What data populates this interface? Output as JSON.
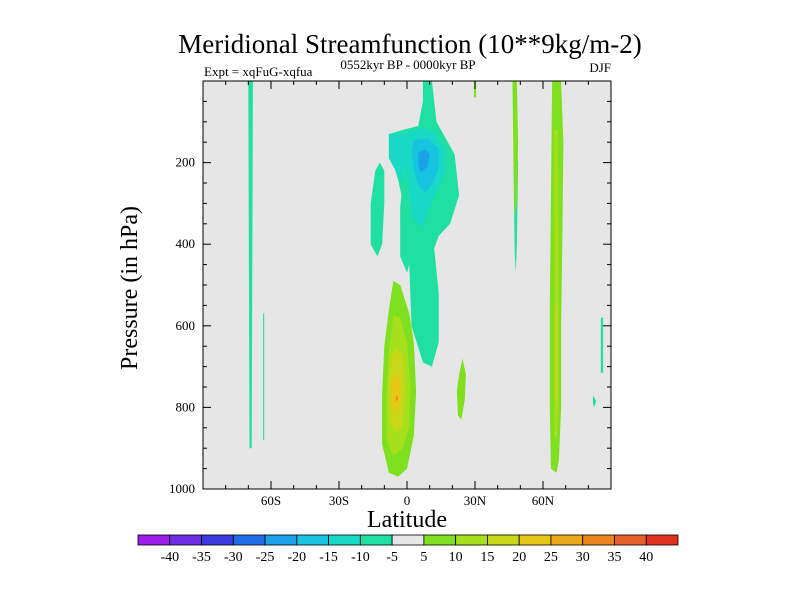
{
  "chart_data": {
    "type": "heatmap",
    "title": "Meridional Streamfunction (10**9kg/m-2)",
    "left_label": "Expt = xqFuG-xqfua",
    "center_label": "0552kyr BP - 0000kyr BP",
    "right_label": "DJF",
    "xlabel": "Latitude",
    "ylabel": "Pressure (in hPa)",
    "xlim": [
      -90,
      90
    ],
    "ylim": [
      1000,
      0
    ],
    "x_ticks": [
      {
        "value": -60,
        "label": "60S"
      },
      {
        "value": -30,
        "label": "30S"
      },
      {
        "value": 0,
        "label": "0"
      },
      {
        "value": 30,
        "label": "30N"
      },
      {
        "value": 60,
        "label": "60N"
      }
    ],
    "y_ticks": [
      {
        "value": 200,
        "label": "200"
      },
      {
        "value": 400,
        "label": "400"
      },
      {
        "value": 600,
        "label": "600"
      },
      {
        "value": 800,
        "label": "800"
      },
      {
        "value": 1000,
        "label": "1000"
      }
    ],
    "background_color": "#e6e6e6",
    "colorbar": {
      "labels": [
        "-40",
        "-35",
        "-30",
        "-25",
        "-20",
        "-15",
        "-10",
        "-5",
        "5",
        "10",
        "15",
        "20",
        "25",
        "30",
        "35",
        "40"
      ],
      "colors": [
        "#9b1fe6",
        "#6d2ee3",
        "#3a3ae0",
        "#1d6ee5",
        "#1aa1e8",
        "#17c4e0",
        "#17d9c6",
        "#1fe0a0",
        "#e6e6e6",
        "#7fe01f",
        "#a6e01a",
        "#c8d819",
        "#e6c617",
        "#e8a81a",
        "#e8861d",
        "#e6602a",
        "#e0301f"
      ]
    },
    "regions": [
      {
        "name": "sh-65s-narrow-negative",
        "color": "#1fe0a0",
        "points": [
          [
            -70,
            0
          ],
          [
            -68,
            0
          ],
          [
            -68.5,
            900
          ],
          [
            -69.5,
            900
          ]
        ]
      },
      {
        "name": "sh-62s-narrow-negative",
        "color": "#1fe0a0",
        "points": [
          [
            -63.5,
            570
          ],
          [
            -63,
            570
          ],
          [
            -63,
            880
          ],
          [
            -63.5,
            880
          ]
        ]
      },
      {
        "name": "upper-cell-negative-outer",
        "color": "#1fe0a0",
        "points": [
          [
            7,
            0
          ],
          [
            11,
            0
          ],
          [
            13,
            100
          ],
          [
            21,
            180
          ],
          [
            23,
            280
          ],
          [
            19,
            350
          ],
          [
            14,
            380
          ],
          [
            12,
            410
          ],
          [
            14,
            520
          ],
          [
            14,
            640
          ],
          [
            11,
            700
          ],
          [
            7,
            690
          ],
          [
            2,
            600
          ],
          [
            1,
            450
          ],
          [
            0,
            340
          ],
          [
            -4,
            240
          ],
          [
            -8,
            170
          ],
          [
            -8,
            130
          ],
          [
            -2,
            120
          ],
          [
            5,
            110
          ],
          [
            7,
            50
          ]
        ]
      },
      {
        "name": "upper-cell-negative-mid",
        "color": "#17d9c6",
        "points": [
          [
            -8,
            130
          ],
          [
            -1,
            130
          ],
          [
            6,
            115
          ],
          [
            12,
            125
          ],
          [
            17,
            170
          ],
          [
            17,
            225
          ],
          [
            13,
            270
          ],
          [
            10,
            310
          ],
          [
            7,
            360
          ],
          [
            3,
            340
          ],
          [
            1,
            300
          ],
          [
            -3,
            240
          ],
          [
            -8,
            190
          ]
        ]
      },
      {
        "name": "upper-cell-negative-inner",
        "color": "#17c4e0",
        "points": [
          [
            3,
            145
          ],
          [
            9,
            140
          ],
          [
            14,
            165
          ],
          [
            14,
            215
          ],
          [
            11,
            255
          ],
          [
            8,
            275
          ],
          [
            5,
            255
          ],
          [
            3,
            215
          ],
          [
            2,
            175
          ]
        ]
      },
      {
        "name": "upper-cell-negative-core",
        "color": "#1aa1e8",
        "points": [
          [
            5,
            175
          ],
          [
            8,
            168
          ],
          [
            10,
            180
          ],
          [
            9,
            210
          ],
          [
            6,
            225
          ],
          [
            5,
            205
          ]
        ]
      },
      {
        "name": "negative-lobe-10s",
        "color": "#1fe0a0",
        "points": [
          [
            -14,
            220
          ],
          [
            -12,
            200
          ],
          [
            -10,
            220
          ],
          [
            -10,
            300
          ],
          [
            -11,
            400
          ],
          [
            -13,
            430
          ],
          [
            -16,
            400
          ],
          [
            -16,
            300
          ]
        ]
      },
      {
        "name": "negative-lobe-2s",
        "color": "#1fe0a0",
        "points": [
          [
            -1,
            200
          ],
          [
            1,
            260
          ],
          [
            2,
            350
          ],
          [
            2,
            430
          ],
          [
            0,
            470
          ],
          [
            -3,
            430
          ],
          [
            -3,
            310
          ],
          [
            -2,
            250
          ]
        ]
      },
      {
        "name": "negative-strip-49n",
        "color": "#1fe0a0",
        "points": [
          [
            47,
            200
          ],
          [
            48,
            170
          ],
          [
            49,
            200
          ],
          [
            48.5,
            400
          ],
          [
            48,
            470
          ],
          [
            47.5,
            420
          ]
        ]
      },
      {
        "name": "negative-strip-87n",
        "color": "#1fe0a0",
        "points": [
          [
            85.5,
            580
          ],
          [
            86.5,
            580
          ],
          [
            86.5,
            715
          ],
          [
            85.5,
            715
          ]
        ]
      },
      {
        "name": "negative-dot-83n",
        "color": "#1fe0a0",
        "points": [
          [
            82,
            770
          ],
          [
            83.5,
            785
          ],
          [
            82.5,
            800
          ],
          [
            82,
            790
          ]
        ]
      },
      {
        "name": "positive-cell-outer",
        "color": "#7fe01f",
        "points": [
          [
            -6,
            490
          ],
          [
            -3,
            500
          ],
          [
            1,
            570
          ],
          [
            3,
            640
          ],
          [
            4,
            760
          ],
          [
            3,
            870
          ],
          [
            0,
            950
          ],
          [
            -4,
            970
          ],
          [
            -8,
            960
          ],
          [
            -11,
            890
          ],
          [
            -11,
            770
          ],
          [
            -10,
            650
          ],
          [
            -8,
            560
          ]
        ]
      },
      {
        "name": "positive-cell-mid",
        "color": "#a6e01a",
        "points": [
          [
            -6,
            575
          ],
          [
            -3,
            580
          ],
          [
            0,
            640
          ],
          [
            1.5,
            740
          ],
          [
            1,
            850
          ],
          [
            -2,
            900
          ],
          [
            -6,
            920
          ],
          [
            -9,
            880
          ],
          [
            -9,
            760
          ],
          [
            -8,
            660
          ]
        ]
      },
      {
        "name": "positive-cell-inner",
        "color": "#c8d819",
        "points": [
          [
            -5,
            655
          ],
          [
            -2,
            670
          ],
          [
            -1,
            760
          ],
          [
            -2,
            845
          ],
          [
            -5,
            860
          ],
          [
            -8,
            830
          ],
          [
            -8,
            740
          ],
          [
            -7,
            680
          ]
        ]
      },
      {
        "name": "positive-cell-core",
        "color": "#e6c617",
        "points": [
          [
            -5,
            715
          ],
          [
            -3,
            730
          ],
          [
            -3,
            790
          ],
          [
            -5,
            815
          ],
          [
            -7,
            790
          ],
          [
            -7,
            740
          ]
        ]
      },
      {
        "name": "positive-cell-peak",
        "color": "#e8861d",
        "points": [
          [
            -4.5,
            770
          ],
          [
            -4,
            778
          ],
          [
            -4.5,
            786
          ],
          [
            -5,
            778
          ]
        ]
      },
      {
        "name": "positive-blob-24n",
        "color": "#7fe01f",
        "points": [
          [
            24.5,
            680
          ],
          [
            26,
            720
          ],
          [
            25.5,
            780
          ],
          [
            24,
            830
          ],
          [
            22.5,
            820
          ],
          [
            22,
            760
          ],
          [
            23,
            720
          ]
        ]
      },
      {
        "name": "positive-strip-30n",
        "color": "#7fe01f",
        "points": [
          [
            29.5,
            0
          ],
          [
            30.5,
            0
          ],
          [
            30.5,
            40
          ],
          [
            29.5,
            40
          ]
        ]
      },
      {
        "name": "positive-strip-48n",
        "color": "#7fe01f",
        "points": [
          [
            46.5,
            0
          ],
          [
            48.5,
            0
          ],
          [
            49,
            150
          ],
          [
            48.5,
            300
          ],
          [
            47.5,
            330
          ],
          [
            47,
            200
          ]
        ]
      },
      {
        "name": "positive-strip-66n-outer",
        "color": "#7fe01f",
        "points": [
          [
            64,
            0
          ],
          [
            68,
            0
          ],
          [
            69,
            150
          ],
          [
            68.5,
            400
          ],
          [
            68,
            600
          ],
          [
            68,
            800
          ],
          [
            67,
            930
          ],
          [
            66,
            960
          ],
          [
            63.5,
            950
          ],
          [
            63,
            800
          ],
          [
            63,
            550
          ],
          [
            63.5,
            300
          ]
        ]
      },
      {
        "name": "positive-strip-66n-inner",
        "color": "#a6e01a",
        "points": [
          [
            65,
            120
          ],
          [
            66.5,
            120
          ],
          [
            67,
            400
          ],
          [
            67,
            800
          ],
          [
            66,
            880
          ],
          [
            65,
            870
          ],
          [
            65,
            500
          ]
        ]
      },
      {
        "name": "positive-strip-66n-core",
        "color": "#c8d819",
        "points": [
          [
            65.3,
            550
          ],
          [
            66.3,
            550
          ],
          [
            66.3,
            780
          ],
          [
            65.3,
            780
          ]
        ]
      }
    ]
  }
}
